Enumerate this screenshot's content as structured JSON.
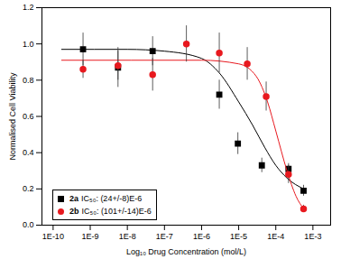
{
  "chart_data": {
    "type": "scatter",
    "x_label": "Log₁₀ Drug Concentration (mol/L)",
    "y_label": "Normalised Cell Viability",
    "log": "x",
    "grid": false,
    "legend": "lower left",
    "xlim": [
      5e-11,
      0.003
    ],
    "xticks": [
      {
        "value": 1e-10,
        "label": "1E-10"
      },
      {
        "value": 1e-09,
        "label": "1E-9"
      },
      {
        "value": 1e-08,
        "label": "1E-8"
      },
      {
        "value": 1e-07,
        "label": "1E-7"
      },
      {
        "value": 1e-06,
        "label": "1E-6"
      },
      {
        "value": 1e-05,
        "label": "1E-5"
      },
      {
        "value": 0.0001,
        "label": "1E-4"
      },
      {
        "value": 0.001,
        "label": "1E-3"
      }
    ],
    "ylim": [
      0,
      1.2
    ],
    "yticks": [
      {
        "value": 0,
        "label": "0.0"
      },
      {
        "value": 0.2,
        "label": "0.2"
      },
      {
        "value": 0.4,
        "label": "0.4"
      },
      {
        "value": 0.6,
        "label": "0.6"
      },
      {
        "value": 0.8,
        "label": "0.8"
      },
      {
        "value": 1,
        "label": "1.0"
      },
      {
        "value": 1.2,
        "label": "1.2"
      }
    ],
    "series": [
      {
        "name": "2a",
        "ic50_label": "IC₅₀: (24+/-8)E-6",
        "color": "#000000",
        "marker": "square",
        "x": [
          6.4e-10,
          5.6e-09,
          4.8e-08,
          3e-06,
          9.5e-06,
          4.2e-05,
          0.00022,
          0.00056
        ],
        "values": [
          0.97,
          0.87,
          0.96,
          0.72,
          0.45,
          0.33,
          0.31,
          0.19
        ],
        "error": [
          0.09,
          0.11,
          0.08,
          0.08,
          0.06,
          0.04,
          0.03,
          0.03
        ],
        "fit_x": [
          1.7e-10,
          1e-08,
          1e-07,
          1e-06,
          3e-06,
          1e-05,
          2.4e-05,
          5e-05,
          0.0001,
          0.0002,
          0.00056
        ],
        "fit_values": [
          0.97,
          0.97,
          0.96,
          0.92,
          0.84,
          0.68,
          0.55,
          0.43,
          0.33,
          0.26,
          0.2
        ]
      },
      {
        "name": "2b",
        "ic50_label": "IC₅₀: (101+/-14)E-6",
        "color": "#e8191f",
        "marker": "circle",
        "x": [
          6.4e-10,
          5.6e-09,
          4.8e-08,
          3.9e-07,
          3e-06,
          1.7e-05,
          5.5e-05,
          0.00022,
          0.00056
        ],
        "values": [
          0.86,
          0.88,
          0.83,
          1.0,
          0.95,
          0.89,
          0.71,
          0.28,
          0.09
        ],
        "error": [
          0.05,
          0.08,
          0.09,
          0.1,
          0.11,
          0.09,
          0.08,
          0.05,
          0.02
        ],
        "fit_x": [
          1.7e-10,
          1e-06,
          1e-05,
          3e-05,
          6e-05,
          0.0001,
          0.0002,
          0.00035,
          0.00056
        ],
        "fit_values": [
          0.91,
          0.91,
          0.89,
          0.82,
          0.68,
          0.52,
          0.3,
          0.16,
          0.09
        ]
      }
    ]
  }
}
